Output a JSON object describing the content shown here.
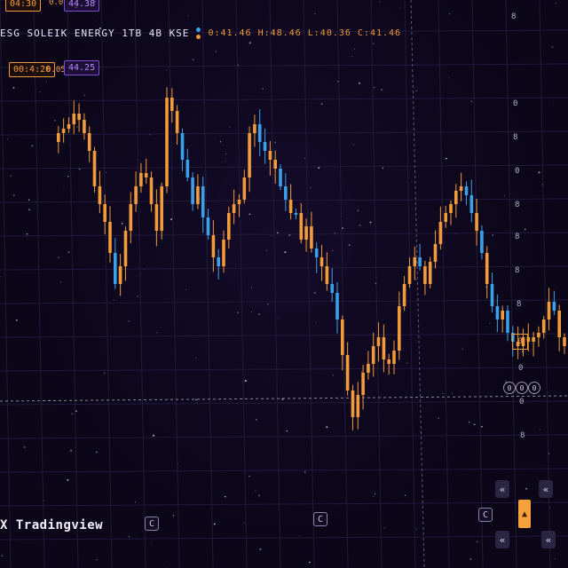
{
  "header": {
    "symbol": "ESG SOLEIK ENERGY 1TB 4B KSE",
    "ohlc": "0:41.46 H:48.46 L:40.36 C:41.46",
    "dot_colors": [
      "#3aa0e8",
      "#f29b3a"
    ]
  },
  "tags": {
    "top_orange": "04:30",
    "top_purple": "44.38",
    "mid_orange": "00:4:20",
    "mid_num": "0.05",
    "mid_purple": "44.25",
    "top_mini": "0.0"
  },
  "axis_right": [
    "0",
    "8",
    "0",
    "8",
    "8",
    "8",
    "8",
    "0",
    "0",
    "8"
  ],
  "brand": "Tradingview",
  "brand_glyph": "X",
  "controls": {
    "bottom_left": "C",
    "bottom_mid": "C",
    "right_c": "C",
    "zoom": [
      "0",
      "0",
      "0"
    ],
    "nav_left": "«",
    "nav_right": "«",
    "highlight": "▲",
    "top_mark": "8",
    "price_tag": "0"
  },
  "colors": {
    "up": "#f29b3a",
    "down": "#3aa0e8",
    "background": "#0b0618",
    "grid": "#221a3a"
  },
  "chart_data": {
    "type": "candlestick",
    "close_path": [
      160,
      150,
      145,
      140,
      128,
      135,
      150,
      170,
      210,
      230,
      250,
      285,
      320,
      300,
      260,
      230,
      210,
      195,
      200,
      230,
      260,
      210,
      110,
      125,
      150,
      180,
      200,
      230,
      210,
      245,
      265,
      290,
      300,
      270,
      240,
      230,
      225,
      200,
      150,
      140,
      160,
      170,
      180,
      190,
      210,
      225,
      240,
      240,
      270,
      255,
      280,
      290,
      300,
      320,
      330,
      360,
      400,
      440,
      470,
      445,
      420,
      410,
      390,
      380,
      405,
      410,
      395,
      345,
      320,
      300,
      290,
      300,
      320,
      295,
      275,
      250,
      240,
      230,
      215,
      210,
      220,
      240,
      260,
      285,
      320,
      345,
      360,
      350,
      375,
      385,
      390,
      380,
      385,
      380,
      375,
      360,
      340,
      350,
      380,
      390
    ]
  }
}
